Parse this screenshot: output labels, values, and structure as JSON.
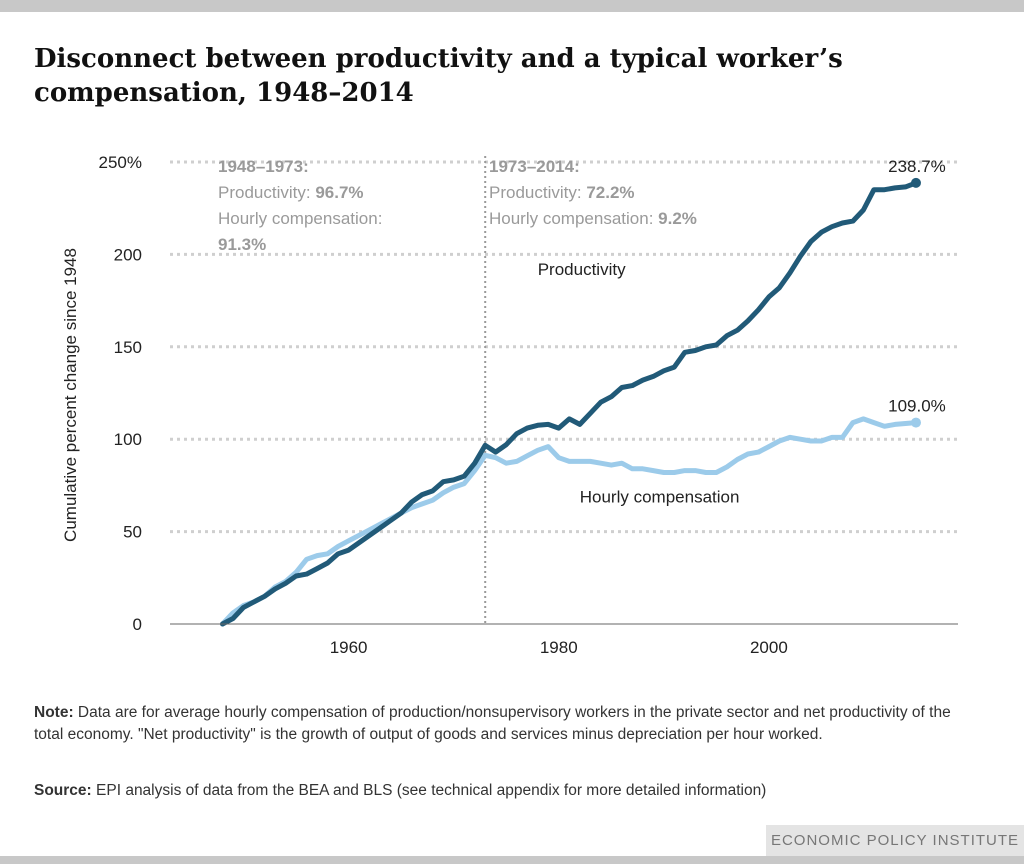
{
  "title": {
    "line1": "Disconnect between productivity and a typical worker’s",
    "line2": "compensation, 1948–2014"
  },
  "note": {
    "label": "Note:",
    "text": "Data are for average hourly compensation of production/nonsupervisory workers in the private sector and net productivity of the total economy. \"Net productivity\" is the growth of output of goods and services minus depreciation per hour worked."
  },
  "source": {
    "label": "Source:",
    "text": "EPI analysis of data from the BEA and BLS (see technical appendix for more detailed information)"
  },
  "brand": "ECONOMIC POLICY INSTITUTE",
  "colors": {
    "productivity": "#215a78",
    "compensation": "#9ccbea",
    "annotation": "#9a9a9a",
    "grid": "#cfcfcf"
  },
  "chart_data": {
    "type": "line",
    "ylabel": "Cumulative percent change since 1948",
    "xlabel": "",
    "xlim": [
      1943,
      2018
    ],
    "ylim": [
      0,
      250
    ],
    "y_ticks": [
      {
        "value": 0,
        "label": "0"
      },
      {
        "value": 50,
        "label": "50"
      },
      {
        "value": 100,
        "label": "100"
      },
      {
        "value": 150,
        "label": "150"
      },
      {
        "value": 200,
        "label": "200"
      },
      {
        "value": 250,
        "label": "250%"
      }
    ],
    "x_ticks": [
      {
        "value": 1960,
        "label": "1960"
      },
      {
        "value": 1980,
        "label": "1980"
      },
      {
        "value": 2000,
        "label": "2000"
      }
    ],
    "grid": "horizontal dotted",
    "divider_year": 1973,
    "series": [
      {
        "name": "Productivity",
        "label_year": 1978,
        "label_value": 192,
        "end_label": "238.7%",
        "x": [
          1948,
          1949,
          1950,
          1951,
          1952,
          1953,
          1954,
          1955,
          1956,
          1957,
          1958,
          1959,
          1960,
          1961,
          1962,
          1963,
          1964,
          1965,
          1966,
          1967,
          1968,
          1969,
          1970,
          1971,
          1972,
          1973,
          1974,
          1975,
          1976,
          1977,
          1978,
          1979,
          1980,
          1981,
          1982,
          1983,
          1984,
          1985,
          1986,
          1987,
          1988,
          1989,
          1990,
          1991,
          1992,
          1993,
          1994,
          1995,
          1996,
          1997,
          1998,
          1999,
          2000,
          2001,
          2002,
          2003,
          2004,
          2005,
          2006,
          2007,
          2008,
          2009,
          2010,
          2011,
          2012,
          2013,
          2014
        ],
        "values": [
          0,
          3,
          9,
          12,
          15,
          19,
          22,
          26,
          27,
          30,
          33,
          38,
          40,
          44,
          48,
          52,
          56,
          60,
          66,
          70,
          72,
          77,
          78,
          80,
          87,
          96.7,
          93,
          97,
          103,
          106,
          107.5,
          108,
          106,
          111,
          108,
          114,
          120,
          123,
          128,
          129,
          132,
          134,
          137,
          139,
          147,
          148,
          150,
          151,
          156,
          159,
          164,
          170,
          177,
          182,
          190,
          199,
          207,
          212,
          215,
          217,
          218,
          224,
          235,
          235,
          236,
          236.5,
          238.7
        ]
      },
      {
        "name": "Hourly compensation",
        "label_year": 1982,
        "label_value": 69,
        "end_label": "109.0%",
        "x": [
          1948,
          1949,
          1950,
          1951,
          1952,
          1953,
          1954,
          1955,
          1956,
          1957,
          1958,
          1959,
          1960,
          1961,
          1962,
          1963,
          1964,
          1965,
          1966,
          1967,
          1968,
          1969,
          1970,
          1971,
          1972,
          1973,
          1974,
          1975,
          1976,
          1977,
          1978,
          1979,
          1980,
          1981,
          1982,
          1983,
          1984,
          1985,
          1986,
          1987,
          1988,
          1989,
          1990,
          1991,
          1992,
          1993,
          1994,
          1995,
          1996,
          1997,
          1998,
          1999,
          2000,
          2001,
          2002,
          2003,
          2004,
          2005,
          2006,
          2007,
          2008,
          2009,
          2010,
          2011,
          2012,
          2013,
          2014
        ],
        "values": [
          0,
          6,
          10,
          12,
          15,
          20,
          23,
          28,
          35,
          37,
          38,
          42,
          45,
          48,
          51,
          54,
          57,
          60,
          63,
          65,
          67,
          71,
          74,
          76,
          83,
          91.3,
          90,
          87,
          88,
          91,
          94,
          96,
          90,
          88,
          88,
          88,
          87,
          86,
          87,
          84,
          84,
          83,
          82,
          82,
          83,
          83,
          82,
          82,
          85,
          89,
          92,
          93,
          96,
          99,
          101,
          100,
          99,
          99,
          101,
          101,
          109,
          111,
          109,
          107,
          108,
          108.5,
          109
        ]
      }
    ]
  },
  "annotations": {
    "left": {
      "heading": "1948–1973:",
      "productivity_label": "Productivity: ",
      "productivity_value": "96.7%",
      "compensation_label": "Hourly compensation:",
      "compensation_value": "91.3%"
    },
    "right": {
      "heading": "1973–2014:",
      "productivity_label": "Productivity: ",
      "productivity_value": "72.2%",
      "compensation_label": "Hourly compensation: ",
      "compensation_value": "9.2%"
    }
  }
}
